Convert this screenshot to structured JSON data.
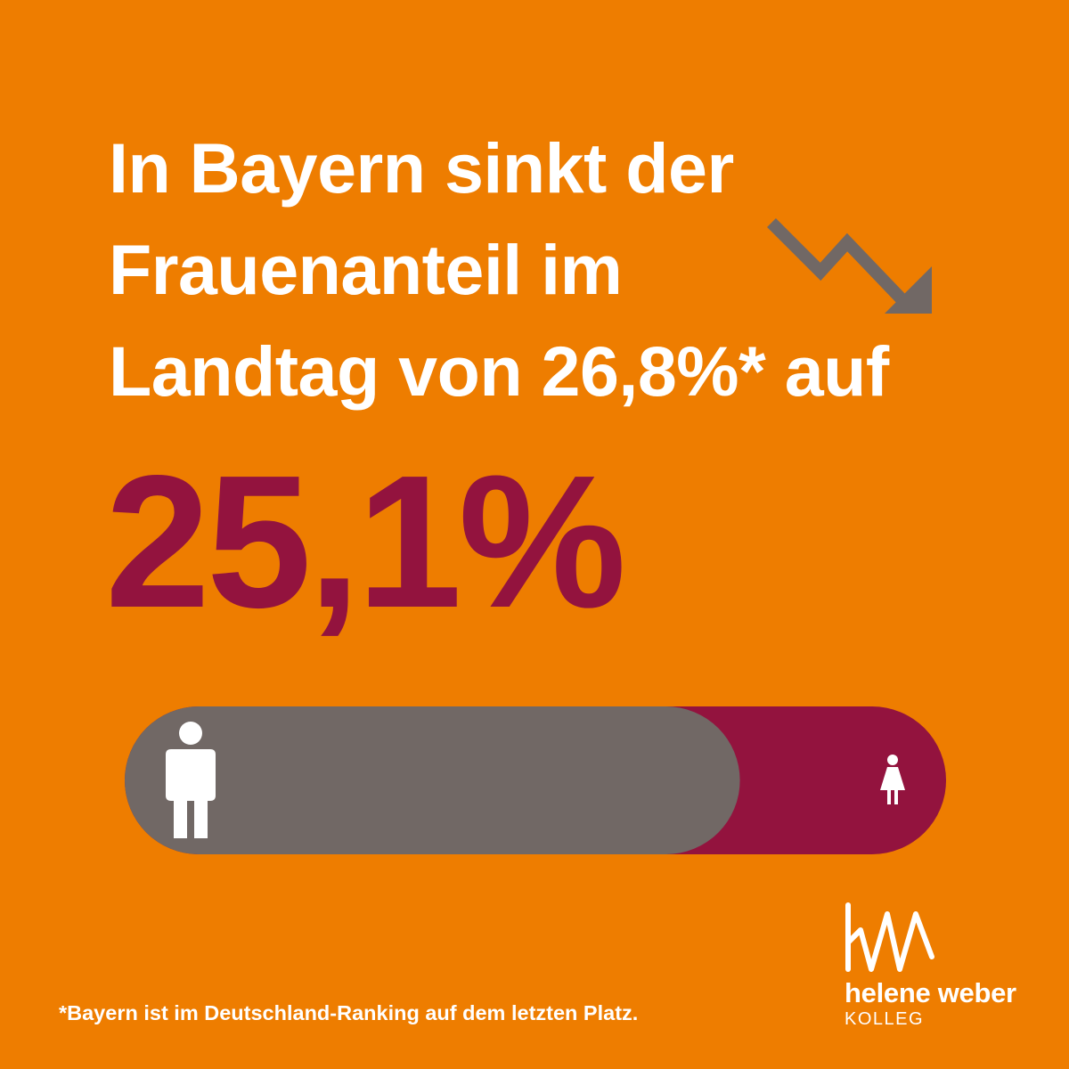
{
  "headline": {
    "line1": "In Bayern sinkt der",
    "line2": "Frauenanteil im",
    "line3": "Landtag von 26,8%* auf"
  },
  "big_value": "25,1%",
  "footnote": "*Bayern ist im Deutschland-Ranking auf dem letzten Platz.",
  "logo": {
    "name": "helene weber",
    "sub": "KOLLEG"
  },
  "icons": {
    "trend": "trend-down-arrow-icon",
    "men": "man-icon",
    "women": "woman-icon",
    "logo_mark": "hw-monogram-icon"
  },
  "colors": {
    "background": "#EE7D00",
    "accent": "#93133E",
    "men_segment": "#716865",
    "text": "#FFFFFF"
  },
  "chart_data": {
    "type": "bar",
    "orientation": "horizontal-stacked",
    "series": [
      {
        "name": "",
        "value": 74.9,
        "color": "#716865",
        "icon": "man-icon"
      },
      {
        "name": "",
        "value": 25.1,
        "color": "#93133E",
        "icon": "woman-icon"
      }
    ],
    "total": 100
  }
}
